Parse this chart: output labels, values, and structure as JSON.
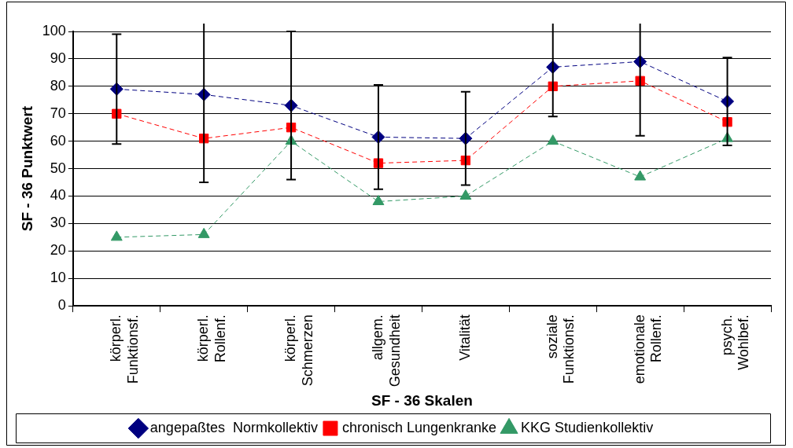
{
  "chart_data": {
    "type": "line",
    "xlabel": "SF - 36 Skalen",
    "ylabel": "SF - 36 Punktwert",
    "categories": [
      "körperl.\nFunktionsf.",
      "körperl.\nRollenf.",
      "körperl.\nSchmerzen",
      "allgem.\nGesundheit",
      "Vitalität",
      "soziale\nFunktionsf.",
      "emotionale\nRollenf.",
      "psych.\nWohlbef."
    ],
    "series": [
      {
        "name": "angepaßtes  Normkollektiv",
        "color": "#000080",
        "marker": "diamond",
        "values": [
          79,
          77,
          73,
          61.5,
          61,
          87,
          89,
          74.5
        ],
        "errors": [
          20,
          32,
          27,
          19,
          17,
          18,
          27,
          16
        ]
      },
      {
        "name": "chronisch Lungenkranke",
        "color": "#ff0000",
        "marker": "square",
        "values": [
          70,
          61,
          65,
          52,
          53,
          80,
          82,
          67
        ]
      },
      {
        "name": "KKG Studienkollektiv",
        "color": "#339966",
        "marker": "triangle",
        "values": [
          25,
          26,
          60,
          38,
          40,
          60,
          47,
          61
        ]
      }
    ],
    "ylim": [
      0,
      100
    ],
    "yticks": [
      0,
      10,
      20,
      30,
      40,
      50,
      60,
      70,
      80,
      90,
      100
    ],
    "grid": "y",
    "legend": "bottom",
    "line_style": "dashed"
  }
}
